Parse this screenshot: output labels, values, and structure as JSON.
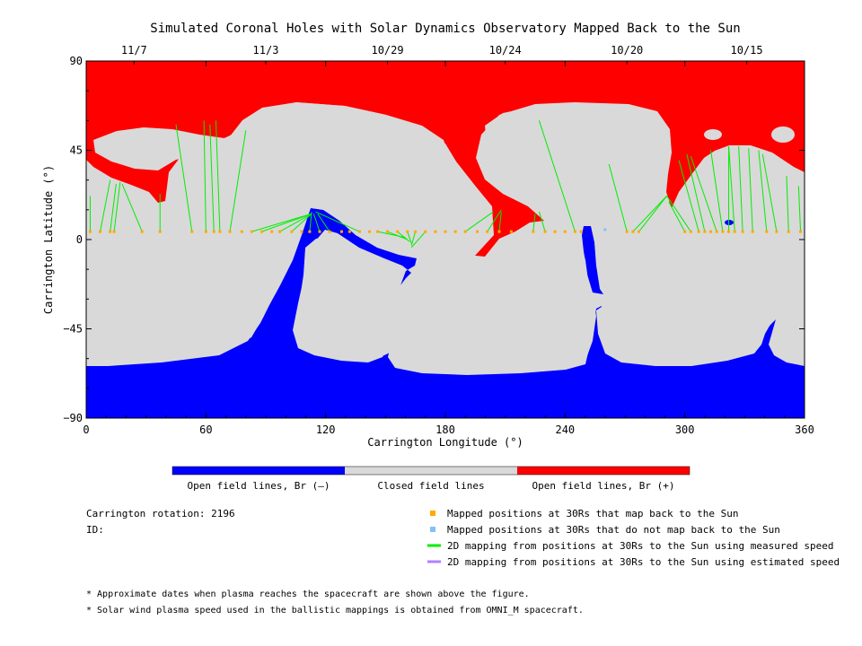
{
  "chart_data": {
    "type": "map",
    "title": "Simulated Coronal Holes with Solar Dynamics Observatory Mapped Back to the Sun",
    "xlabel": "Carrington Longitude (°)",
    "ylabel": "Carrington Latitude (°)",
    "xlim": [
      0,
      360
    ],
    "ylim": [
      -90,
      90
    ],
    "x_ticks": [
      "0",
      "60",
      "120",
      "180",
      "240",
      "300",
      "360"
    ],
    "y_ticks": [
      "90",
      "45",
      "0",
      "-45",
      "-90"
    ],
    "top_date_ticks": [
      {
        "label": "11/7",
        "lon": 24
      },
      {
        "label": "11/3",
        "lon": 90
      },
      {
        "label": "10/29",
        "lon": 151
      },
      {
        "label": "10/24",
        "lon": 210
      },
      {
        "label": "10/20",
        "lon": 271
      },
      {
        "label": "10/15",
        "lon": 331
      }
    ],
    "colorbar": [
      {
        "label": "Open field lines, Br (–)",
        "color": "#0000ff"
      },
      {
        "label": "Closed field lines",
        "color": "#d9d9d9"
      },
      {
        "label": "Open field lines, Br (+)",
        "color": "#ff0000"
      }
    ],
    "mapped_points": {
      "color": "#ffaa00",
      "lat": 4,
      "lons": [
        2,
        7,
        12,
        14,
        28,
        37,
        53,
        60,
        64,
        67,
        72,
        78,
        83,
        88,
        93,
        97,
        103,
        108,
        112,
        117,
        122,
        128,
        132,
        137,
        142,
        146,
        151,
        156,
        161,
        165,
        170,
        175,
        180,
        185,
        190,
        196,
        201,
        207,
        213,
        224,
        230,
        235,
        240,
        245,
        248,
        271,
        274,
        277,
        300,
        303,
        307,
        310,
        313,
        316,
        319,
        322,
        325,
        329,
        334,
        341,
        346,
        352,
        358
      ]
    },
    "unmapped_points": {
      "color": "#82c3f5",
      "lat": 5,
      "lons": [
        260
      ]
    },
    "measured_mapping_color": "#00ee00",
    "estimated_mapping_color": "#b380ff",
    "mapping_lines": [
      [
        2,
        4,
        2,
        22
      ],
      [
        7,
        4,
        12,
        30
      ],
      [
        12,
        4,
        15,
        28
      ],
      [
        14,
        4,
        17,
        29
      ],
      [
        28,
        4,
        18,
        28
      ],
      [
        37,
        4,
        37,
        23
      ],
      [
        53,
        4,
        45,
        58
      ],
      [
        60,
        4,
        59,
        60
      ],
      [
        64,
        4,
        62,
        58
      ],
      [
        67,
        4,
        65,
        60
      ],
      [
        72,
        4,
        80,
        55
      ],
      [
        83,
        4,
        113,
        13
      ],
      [
        88,
        4,
        113,
        13
      ],
      [
        97,
        4,
        113,
        13
      ],
      [
        103,
        4,
        113,
        13
      ],
      [
        112,
        4,
        113,
        14
      ],
      [
        117,
        4,
        114,
        13
      ],
      [
        122,
        4,
        116,
        13
      ],
      [
        137,
        4,
        115,
        14
      ],
      [
        146,
        4,
        160,
        1
      ],
      [
        151,
        4,
        161,
        0
      ],
      [
        156,
        4,
        162,
        -1
      ],
      [
        161,
        4,
        163,
        -2
      ],
      [
        165,
        4,
        163,
        -3
      ],
      [
        170,
        4,
        163,
        -4
      ],
      [
        190,
        4,
        204,
        14
      ],
      [
        201,
        4,
        208,
        15
      ],
      [
        207,
        4,
        208,
        14
      ],
      [
        224,
        4,
        225,
        13
      ],
      [
        230,
        4,
        227,
        14
      ],
      [
        245,
        4,
        227,
        60
      ],
      [
        271,
        4,
        262,
        38
      ],
      [
        274,
        4,
        291,
        22
      ],
      [
        277,
        4,
        291,
        22
      ],
      [
        300,
        4,
        292,
        19
      ],
      [
        303,
        4,
        291,
        22
      ],
      [
        307,
        4,
        297,
        40
      ],
      [
        310,
        4,
        301,
        43
      ],
      [
        316,
        4,
        303,
        42
      ],
      [
        319,
        4,
        313,
        45
      ],
      [
        322,
        4,
        322,
        47
      ],
      [
        325,
        4,
        322,
        47
      ],
      [
        329,
        4,
        327,
        47
      ],
      [
        334,
        4,
        332,
        46
      ],
      [
        341,
        4,
        337,
        45
      ],
      [
        346,
        4,
        339,
        43
      ],
      [
        352,
        4,
        351,
        32
      ],
      [
        358,
        4,
        357,
        27
      ]
    ]
  },
  "legend": {
    "mapped": "Mapped positions at 30Rs that map back to the Sun",
    "unmapped": "Mapped positions at 30Rs that do not map back to the Sun",
    "measured": "2D mapping from positions at 30Rs to the Sun using measured speed",
    "estimated": "2D mapping from positions at 30Rs to the Sun using estimated speed"
  },
  "info": {
    "rotation": "Carrington rotation: 2196",
    "id": "ID:"
  },
  "footnotes": [
    "* Approximate dates when plasma reaches the spacecraft are shown above the figure.",
    "* Solar wind plasma speed used in the ballistic mappings is obtained from OMNI_M spacecraft."
  ]
}
